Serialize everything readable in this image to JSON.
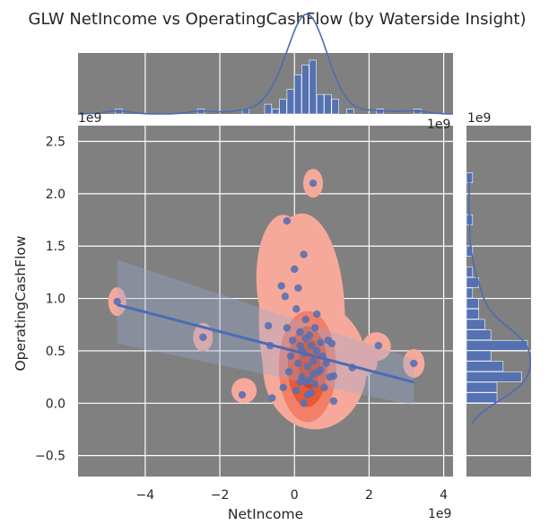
{
  "chart_data": {
    "type": "scatter",
    "title": "GLW NetIncome vs OperatingCashFlow (by Waterside Insight)",
    "xlabel": "NetIncome",
    "ylabel": "OperatingCashFlow",
    "x_offset_label": "1e9",
    "y_offset_label": "1e9",
    "xlim": [
      -5.8,
      4.25
    ],
    "ylim": [
      -0.7,
      2.65
    ],
    "x_ticks": [
      -4,
      -2,
      0,
      2,
      4
    ],
    "x_tick_labels": [
      "−4",
      "−2",
      "0",
      "2",
      "4"
    ],
    "y_ticks": [
      -0.5,
      0.0,
      0.5,
      1.0,
      1.5,
      2.0,
      2.5
    ],
    "y_tick_labels": [
      "−0.5",
      "0.0",
      "0.5",
      "1.0",
      "1.5",
      "2.0",
      "2.5"
    ],
    "grid": true,
    "background": "#808080",
    "point_color": "#5a6fb0",
    "line_color": "#4c6bb6",
    "kde_colors": [
      "#f6a99a",
      "#f27f67",
      "#e85a34",
      "#de3f12"
    ],
    "hist_color": "#5471b2",
    "points": [
      {
        "x": -4.75,
        "y": 0.97
      },
      {
        "x": -2.45,
        "y": 0.63
      },
      {
        "x": -1.4,
        "y": 0.08
      },
      {
        "x": -0.6,
        "y": 0.05
      },
      {
        "x": -0.7,
        "y": 0.74
      },
      {
        "x": -0.65,
        "y": 0.55
      },
      {
        "x": -0.35,
        "y": 1.12
      },
      {
        "x": -0.25,
        "y": 1.02
      },
      {
        "x": -0.2,
        "y": 0.72
      },
      {
        "x": -0.3,
        "y": 0.15
      },
      {
        "x": -0.15,
        "y": 0.3
      },
      {
        "x": -0.1,
        "y": 0.45
      },
      {
        "x": -0.05,
        "y": 0.6
      },
      {
        "x": 0.0,
        "y": 1.28
      },
      {
        "x": 0.05,
        "y": 0.9
      },
      {
        "x": 0.1,
        "y": 1.1
      },
      {
        "x": 0.15,
        "y": 0.55
      },
      {
        "x": 0.2,
        "y": 0.5
      },
      {
        "x": 0.25,
        "y": 1.42
      },
      {
        "x": 0.3,
        "y": 0.2
      },
      {
        "x": 0.35,
        "y": 0.35
      },
      {
        "x": 0.4,
        "y": 0.65
      },
      {
        "x": 0.45,
        "y": 0.1
      },
      {
        "x": 0.5,
        "y": 0.4
      },
      {
        "x": 0.55,
        "y": 0.72
      },
      {
        "x": 0.6,
        "y": 0.5
      },
      {
        "x": 0.65,
        "y": 0.3
      },
      {
        "x": 0.7,
        "y": 0.58
      },
      {
        "x": 0.75,
        "y": 0.45
      },
      {
        "x": 0.8,
        "y": 0.15
      },
      {
        "x": 0.85,
        "y": 0.38
      },
      {
        "x": 0.9,
        "y": 0.6
      },
      {
        "x": 0.95,
        "y": 0.25
      },
      {
        "x": 1.0,
        "y": 0.57
      },
      {
        "x": 1.05,
        "y": 0.02
      },
      {
        "x": -0.2,
        "y": 1.74
      },
      {
        "x": 0.5,
        "y": 2.1
      },
      {
        "x": 0.2,
        "y": 0.25
      },
      {
        "x": 0.3,
        "y": 0.8
      },
      {
        "x": 0.1,
        "y": 0.38
      },
      {
        "x": 0.25,
        "y": 0.48
      },
      {
        "x": 0.4,
        "y": 0.22
      },
      {
        "x": 0.55,
        "y": 0.18
      },
      {
        "x": 0.15,
        "y": 0.68
      },
      {
        "x": 0.35,
        "y": 0.08
      },
      {
        "x": 0.6,
        "y": 0.85
      },
      {
        "x": 0.45,
        "y": 0.55
      },
      {
        "x": 0.7,
        "y": 0.32
      },
      {
        "x": 0.05,
        "y": 0.12
      },
      {
        "x": 0.25,
        "y": 0.0
      },
      {
        "x": 0.3,
        "y": 0.62
      },
      {
        "x": 0.15,
        "y": 0.2
      },
      {
        "x": 0.5,
        "y": 0.28
      },
      {
        "x": 1.05,
        "y": 0.26
      },
      {
        "x": 1.55,
        "y": 0.34
      },
      {
        "x": 2.25,
        "y": 0.55
      },
      {
        "x": 3.2,
        "y": 0.38
      }
    ],
    "regression": {
      "x": [
        -4.75,
        3.2
      ],
      "y": [
        0.94,
        0.2
      ]
    }
  }
}
